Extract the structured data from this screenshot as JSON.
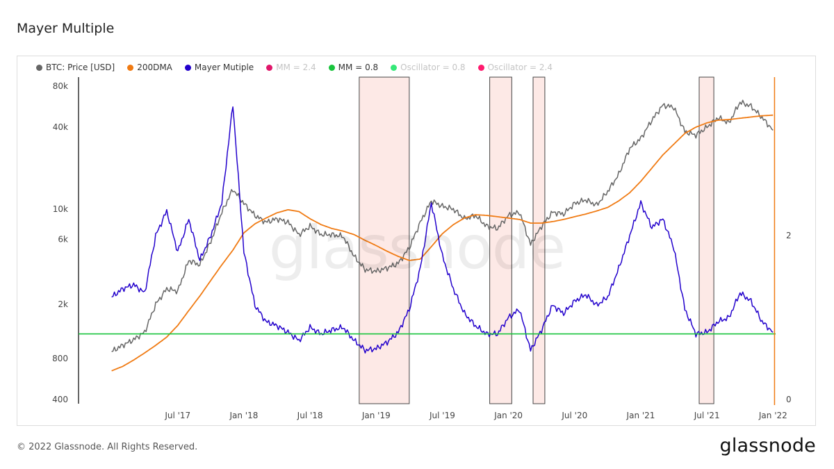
{
  "page": {
    "title": "Mayer Multiple",
    "footer": "© 2022 Glassnode. All Rights Reserved.",
    "brand": "glassnode",
    "watermark": "glassnode"
  },
  "legend": [
    {
      "label": "BTC: Price [USD]",
      "color": "#666666",
      "active": true
    },
    {
      "label": "200DMA",
      "color": "#f07a12",
      "active": true
    },
    {
      "label": "Mayer Mutiple",
      "color": "#2200cc",
      "active": true
    },
    {
      "label": "MM = 2.4",
      "color": "#e0166a",
      "active": false
    },
    {
      "label": "MM = 0.8",
      "color": "#18c43c",
      "active": true
    },
    {
      "label": "Oscillator = 0.8",
      "color": "#35e878",
      "active": false
    },
    {
      "label": "Oscillator = 2.4",
      "color": "#ff1a6e",
      "active": false
    }
  ],
  "chart_data": {
    "type": "line",
    "x_ticks": [
      "Jul '17",
      "Jan '18",
      "Jul '18",
      "Jan '19",
      "Jul '19",
      "Jan '20",
      "Jul '20",
      "Jan '21",
      "Jul '21",
      "Jan '22"
    ],
    "x_range": [
      "2017-01",
      "2022-01"
    ],
    "y_left": {
      "scale": "log",
      "ticks": [
        "80k",
        "40k",
        "10k",
        "6k",
        "2k",
        "800",
        "400"
      ],
      "range": [
        400,
        80000
      ]
    },
    "y_right": {
      "ticks": [
        "2",
        "0"
      ],
      "range": [
        0,
        4
      ]
    },
    "grid": false,
    "series": [
      {
        "name": "BTC: Price [USD]",
        "axis": "left",
        "color": "#666666",
        "points": [
          [
            "2017-01",
            900
          ],
          [
            "2017-02",
            1000
          ],
          [
            "2017-03",
            1100
          ],
          [
            "2017-04",
            1250
          ],
          [
            "2017-05",
            2000
          ],
          [
            "2017-06",
            2600
          ],
          [
            "2017-07",
            2500
          ],
          [
            "2017-08",
            4200
          ],
          [
            "2017-09",
            3900
          ],
          [
            "2017-10",
            5800
          ],
          [
            "2017-11",
            9500
          ],
          [
            "2017-12",
            14000
          ],
          [
            "2018-01",
            11000
          ],
          [
            "2018-02",
            9000
          ],
          [
            "2018-03",
            8000
          ],
          [
            "2018-04",
            8500
          ],
          [
            "2018-05",
            8000
          ],
          [
            "2018-06",
            6500
          ],
          [
            "2018-07",
            7500
          ],
          [
            "2018-08",
            6500
          ],
          [
            "2018-09",
            6500
          ],
          [
            "2018-10",
            6300
          ],
          [
            "2018-11",
            4500
          ],
          [
            "2018-12",
            3600
          ],
          [
            "2019-01",
            3500
          ],
          [
            "2019-02",
            3700
          ],
          [
            "2019-03",
            4000
          ],
          [
            "2019-04",
            5200
          ],
          [
            "2019-05",
            8000
          ],
          [
            "2019-06",
            11500
          ],
          [
            "2019-07",
            10500
          ],
          [
            "2019-08",
            10000
          ],
          [
            "2019-09",
            8500
          ],
          [
            "2019-10",
            9000
          ],
          [
            "2019-11",
            7500
          ],
          [
            "2019-12",
            7200
          ],
          [
            "2020-01",
            9000
          ],
          [
            "2020-02",
            9500
          ],
          [
            "2020-03",
            5500
          ],
          [
            "2020-04",
            7500
          ],
          [
            "2020-05",
            9500
          ],
          [
            "2020-06",
            9200
          ],
          [
            "2020-07",
            11000
          ],
          [
            "2020-08",
            11700
          ],
          [
            "2020-09",
            10700
          ],
          [
            "2020-10",
            13500
          ],
          [
            "2020-11",
            18000
          ],
          [
            "2020-12",
            28000
          ],
          [
            "2021-01",
            33000
          ],
          [
            "2021-02",
            45000
          ],
          [
            "2021-03",
            58000
          ],
          [
            "2021-04",
            56000
          ],
          [
            "2021-05",
            37000
          ],
          [
            "2021-06",
            35000
          ],
          [
            "2021-07",
            40000
          ],
          [
            "2021-08",
            47000
          ],
          [
            "2021-09",
            43000
          ],
          [
            "2021-10",
            61000
          ],
          [
            "2021-11",
            57000
          ],
          [
            "2021-12",
            47000
          ],
          [
            "2022-01",
            38000
          ]
        ]
      },
      {
        "name": "200DMA",
        "axis": "left",
        "color": "#f07a12",
        "points": [
          [
            "2017-01",
            650
          ],
          [
            "2017-02",
            700
          ],
          [
            "2017-03",
            780
          ],
          [
            "2017-04",
            880
          ],
          [
            "2017-05",
            1000
          ],
          [
            "2017-06",
            1150
          ],
          [
            "2017-07",
            1400
          ],
          [
            "2017-08",
            1800
          ],
          [
            "2017-09",
            2300
          ],
          [
            "2017-10",
            3000
          ],
          [
            "2017-11",
            3900
          ],
          [
            "2017-12",
            5000
          ],
          [
            "2018-01",
            6700
          ],
          [
            "2018-02",
            7800
          ],
          [
            "2018-03",
            8600
          ],
          [
            "2018-04",
            9400
          ],
          [
            "2018-05",
            9900
          ],
          [
            "2018-06",
            9600
          ],
          [
            "2018-07",
            8500
          ],
          [
            "2018-08",
            7700
          ],
          [
            "2018-09",
            7200
          ],
          [
            "2018-10",
            6900
          ],
          [
            "2018-11",
            6500
          ],
          [
            "2018-12",
            5900
          ],
          [
            "2019-01",
            5400
          ],
          [
            "2019-02",
            4900
          ],
          [
            "2019-03",
            4500
          ],
          [
            "2019-04",
            4200
          ],
          [
            "2019-05",
            4300
          ],
          [
            "2019-06",
            5300
          ],
          [
            "2019-07",
            6600
          ],
          [
            "2019-08",
            7700
          ],
          [
            "2019-09",
            8600
          ],
          [
            "2019-10",
            9100
          ],
          [
            "2019-11",
            9000
          ],
          [
            "2019-12",
            8800
          ],
          [
            "2020-01",
            8600
          ],
          [
            "2020-02",
            8400
          ],
          [
            "2020-03",
            7900
          ],
          [
            "2020-04",
            7900
          ],
          [
            "2020-05",
            8100
          ],
          [
            "2020-06",
            8400
          ],
          [
            "2020-07",
            8800
          ],
          [
            "2020-08",
            9200
          ],
          [
            "2020-09",
            9700
          ],
          [
            "2020-10",
            10300
          ],
          [
            "2020-11",
            11500
          ],
          [
            "2020-12",
            13200
          ],
          [
            "2021-01",
            16000
          ],
          [
            "2021-02",
            20000
          ],
          [
            "2021-03",
            25000
          ],
          [
            "2021-04",
            30000
          ],
          [
            "2021-05",
            36000
          ],
          [
            "2021-06",
            40000
          ],
          [
            "2021-07",
            43000
          ],
          [
            "2021-08",
            45000
          ],
          [
            "2021-09",
            45500
          ],
          [
            "2021-10",
            46500
          ],
          [
            "2021-11",
            47500
          ],
          [
            "2021-12",
            48500
          ],
          [
            "2022-01",
            49000
          ]
        ]
      },
      {
        "name": "Mayer Mutiple",
        "axis": "right",
        "color": "#2200cc",
        "points": [
          [
            "2017-01",
            1.25
          ],
          [
            "2017-02",
            1.35
          ],
          [
            "2017-03",
            1.4
          ],
          [
            "2017-04",
            1.3
          ],
          [
            "2017-05",
            2.0
          ],
          [
            "2017-06",
            2.3
          ],
          [
            "2017-07",
            1.8
          ],
          [
            "2017-08",
            2.2
          ],
          [
            "2017-09",
            1.7
          ],
          [
            "2017-10",
            2.0
          ],
          [
            "2017-11",
            2.4
          ],
          [
            "2017-12",
            3.6
          ],
          [
            "2018-01",
            1.8
          ],
          [
            "2018-02",
            1.15
          ],
          [
            "2018-03",
            0.95
          ],
          [
            "2018-04",
            0.9
          ],
          [
            "2018-05",
            0.82
          ],
          [
            "2018-06",
            0.72
          ],
          [
            "2018-07",
            0.88
          ],
          [
            "2018-08",
            0.8
          ],
          [
            "2018-09",
            0.85
          ],
          [
            "2018-10",
            0.88
          ],
          [
            "2018-11",
            0.72
          ],
          [
            "2018-12",
            0.6
          ],
          [
            "2019-01",
            0.62
          ],
          [
            "2019-02",
            0.7
          ],
          [
            "2019-03",
            0.82
          ],
          [
            "2019-04",
            1.1
          ],
          [
            "2019-05",
            1.6
          ],
          [
            "2019-06",
            2.4
          ],
          [
            "2019-07",
            1.75
          ],
          [
            "2019-08",
            1.35
          ],
          [
            "2019-09",
            1.05
          ],
          [
            "2019-10",
            0.9
          ],
          [
            "2019-11",
            0.8
          ],
          [
            "2019-12",
            0.8
          ],
          [
            "2020-01",
            1.0
          ],
          [
            "2020-02",
            1.1
          ],
          [
            "2020-03",
            0.6
          ],
          [
            "2020-04",
            0.85
          ],
          [
            "2020-05",
            1.15
          ],
          [
            "2020-06",
            1.05
          ],
          [
            "2020-07",
            1.2
          ],
          [
            "2020-08",
            1.28
          ],
          [
            "2020-09",
            1.15
          ],
          [
            "2020-10",
            1.25
          ],
          [
            "2020-11",
            1.6
          ],
          [
            "2020-12",
            2.0
          ],
          [
            "2021-01",
            2.4
          ],
          [
            "2021-02",
            2.1
          ],
          [
            "2021-03",
            2.2
          ],
          [
            "2021-04",
            1.85
          ],
          [
            "2021-05",
            1.1
          ],
          [
            "2021-06",
            0.8
          ],
          [
            "2021-07",
            0.82
          ],
          [
            "2021-08",
            0.95
          ],
          [
            "2021-09",
            1.0
          ],
          [
            "2021-10",
            1.3
          ],
          [
            "2021-11",
            1.2
          ],
          [
            "2021-12",
            0.95
          ],
          [
            "2022-01",
            0.82
          ]
        ]
      },
      {
        "name": "MM = 0.8",
        "axis": "right",
        "color": "#18c43c",
        "value": 0.8
      }
    ],
    "highlight_ranges": [
      [
        "2018-11-15",
        "2019-04-01"
      ],
      [
        "2019-11-10",
        "2020-01-10"
      ],
      [
        "2020-03-08",
        "2020-04-10"
      ],
      [
        "2021-06-10",
        "2021-07-20"
      ]
    ],
    "cursor_date": "2022-01-05"
  }
}
